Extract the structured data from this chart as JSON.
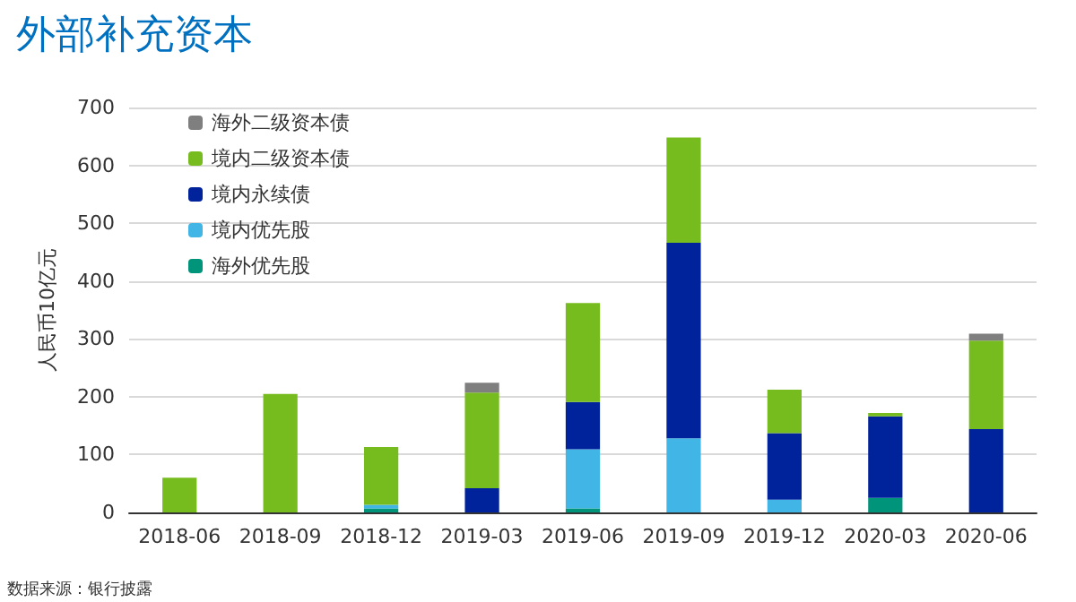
{
  "chart_data": {
    "type": "bar",
    "title": "外部补充资本",
    "ylabel": "人民币10亿元",
    "annotations": [
      "数据来源：银行披露"
    ],
    "categories": [
      "2018-06",
      "2018-09",
      "2018-12",
      "2019-03",
      "2019-06",
      "2019-09",
      "2019-12",
      "2020-03",
      "2020-06"
    ],
    "stacked": true,
    "ylim": [
      0,
      700
    ],
    "yticks": [
      0,
      100,
      200,
      300,
      400,
      500,
      600,
      700
    ],
    "grid": "y",
    "legend": "top left",
    "series": [
      {
        "name": "海外优先股",
        "color": "#00957a",
        "values": [
          0,
          0,
          7,
          0,
          7,
          0,
          0,
          25,
          0
        ]
      },
      {
        "name": "境内优先股",
        "color": "#41b6e6",
        "values": [
          0,
          0,
          6,
          0,
          102,
          128,
          22,
          0,
          0
        ]
      },
      {
        "name": "境内永续债",
        "color": "#00239c",
        "values": [
          0,
          0,
          0,
          42,
          82,
          338,
          115,
          141,
          144
        ]
      },
      {
        "name": "境内二级资本债",
        "color": "#77bc1f",
        "values": [
          60,
          205,
          100,
          165,
          171,
          182,
          75,
          6,
          153
        ]
      },
      {
        "name": "海外二级资本债",
        "color": "#7f7f7f",
        "values": [
          0,
          0,
          0,
          17,
          0,
          0,
          0,
          0,
          12
        ]
      }
    ]
  }
}
